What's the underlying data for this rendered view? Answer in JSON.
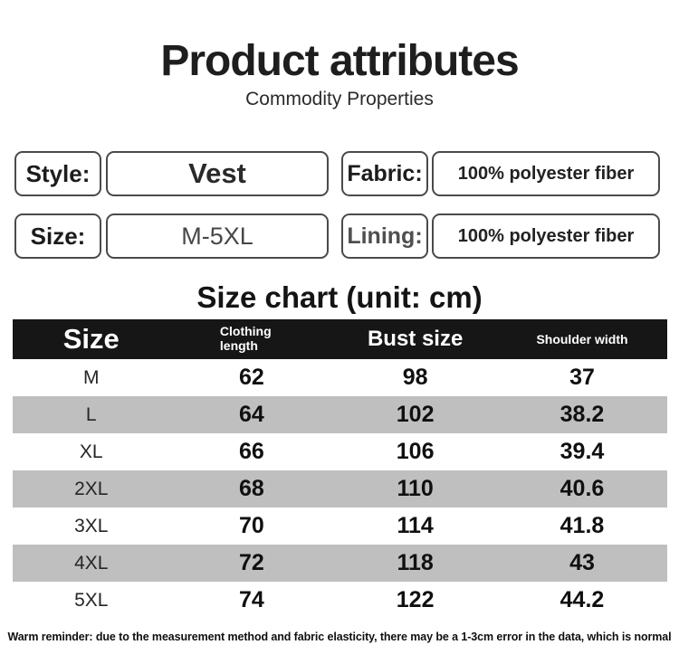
{
  "header": {
    "title": "Product attributes",
    "subtitle": "Commodity Properties"
  },
  "attributes": [
    {
      "label": "Style:",
      "value": "Vest"
    },
    {
      "label": "Fabric:",
      "value": "100% polyester fiber"
    },
    {
      "label": "Size:",
      "value": "M-5XL"
    },
    {
      "label": "Lining:",
      "value": "100% polyester fiber"
    }
  ],
  "size_chart": {
    "heading": "Size chart (unit: cm)",
    "columns": [
      "Size",
      "Clothing length",
      "Bust size",
      "Shoulder width"
    ],
    "rows": [
      {
        "size": "M",
        "clothing_length": "62",
        "bust_size": "98",
        "shoulder_width": "37"
      },
      {
        "size": "L",
        "clothing_length": "64",
        "bust_size": "102",
        "shoulder_width": "38.2"
      },
      {
        "size": "XL",
        "clothing_length": "66",
        "bust_size": "106",
        "shoulder_width": "39.4"
      },
      {
        "size": "2XL",
        "clothing_length": "68",
        "bust_size": "110",
        "shoulder_width": "40.6"
      },
      {
        "size": "3XL",
        "clothing_length": "70",
        "bust_size": "114",
        "shoulder_width": "41.8"
      },
      {
        "size": "4XL",
        "clothing_length": "72",
        "bust_size": "118",
        "shoulder_width": "43"
      },
      {
        "size": "5XL",
        "clothing_length": "74",
        "bust_size": "122",
        "shoulder_width": "44.2"
      }
    ]
  },
  "footer": {
    "reminder": "Warm reminder: due to the measurement method and fabric elasticity, there may be a 1-3cm error in the data, which is normal"
  },
  "colors": {
    "header_row_bg": "#161616",
    "header_row_text": "#ffffff",
    "alt_row_bg": "#bfbfbf",
    "text_primary": "#1d1d1d",
    "box_border": "#4a4a4a"
  }
}
